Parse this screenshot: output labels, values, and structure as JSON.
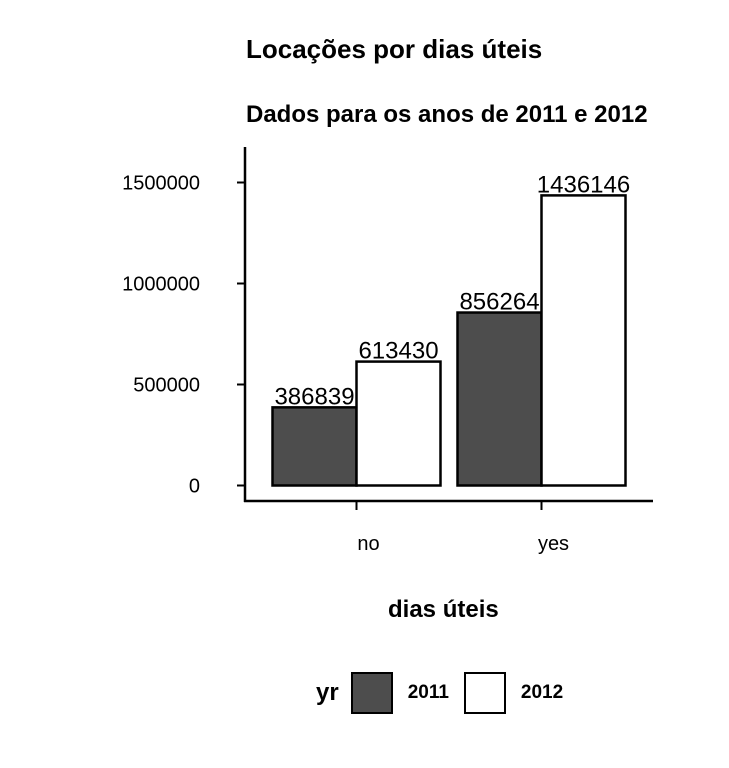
{
  "chart_data": {
    "type": "bar",
    "title": "Locações por dias úteis",
    "subtitle": "Dados para os anos de 2011 e 2012",
    "xlabel": "dias úteis",
    "ylabel": "",
    "categories": [
      "no",
      "yes"
    ],
    "series": [
      {
        "name": "2011",
        "values": [
          386839,
          856264
        ],
        "color": "#4d4d4d"
      },
      {
        "name": "2012",
        "values": [
          613430,
          1436146
        ],
        "color": "#ffffff"
      }
    ],
    "yticks": [
      0,
      500000,
      1000000,
      1500000
    ],
    "ytick_labels": [
      "0",
      "500000",
      "1000000",
      "1500000"
    ],
    "ylim": [
      0,
      1550000
    ],
    "legend_title": "yr",
    "legend_position": "bottom",
    "grid": false
  }
}
